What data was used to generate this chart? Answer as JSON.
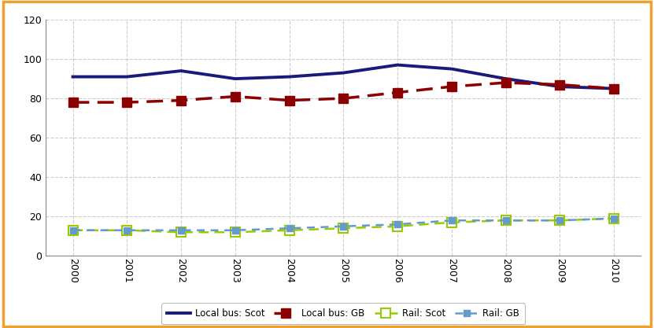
{
  "years": [
    2000,
    2001,
    2002,
    2003,
    2004,
    2005,
    2006,
    2007,
    2008,
    2009,
    2010
  ],
  "local_bus_scot": [
    91,
    91,
    94,
    90,
    91,
    93,
    97,
    95,
    90,
    86,
    85
  ],
  "local_bus_gb": [
    78,
    78,
    79,
    81,
    79,
    80,
    83,
    86,
    88,
    87,
    85
  ],
  "rail_scot": [
    13,
    13,
    12,
    12,
    13,
    14,
    15,
    17,
    18,
    18,
    19
  ],
  "rail_gb": [
    13,
    13,
    13,
    13,
    14,
    15,
    16,
    18,
    18,
    18,
    19
  ],
  "colors": {
    "local_bus_scot": "#1a1a7c",
    "local_bus_gb": "#8b0000",
    "rail_scot": "#99cc00",
    "rail_gb": "#6699cc"
  },
  "ylim": [
    0,
    120
  ],
  "yticks": [
    0,
    20,
    40,
    60,
    80,
    100,
    120
  ],
  "border_color": "#f0a030",
  "grid_color": "#cccccc",
  "background_color": "#ffffff"
}
